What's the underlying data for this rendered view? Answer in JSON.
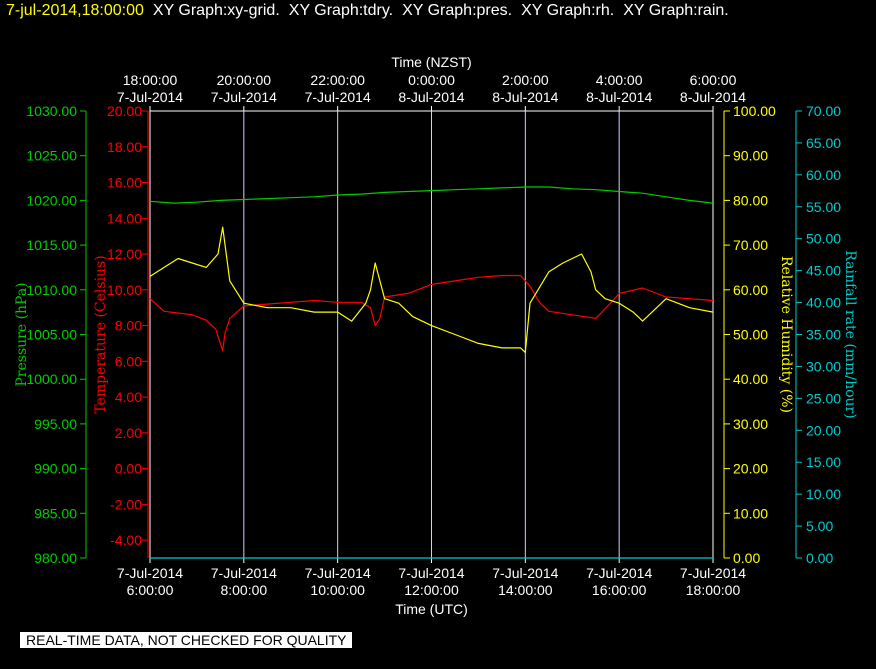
{
  "header": {
    "datetime": "7-jul-2014,18:00:00",
    "titles": [
      "XY Graph:xy-grid.",
      "XY Graph:tdry.",
      "XY Graph:pres.",
      "XY Graph:rh.",
      "XY Graph:rain."
    ]
  },
  "disclaimer": "REAL-TIME DATA, NOT CHECKED FOR QUALITY",
  "colors": {
    "background": "#000000",
    "pressure": "#00cc00",
    "temperature": "#ff0000",
    "humidity": "#ffff00",
    "rainfall": "#00cccc",
    "grid": "#c8d4ff",
    "frame": "#ffffff"
  },
  "chart_data": {
    "type": "line",
    "grid": true,
    "x_top": {
      "label": "Time (NZST)",
      "ticks": [
        [
          "18:00:00",
          "7-Jul-2014"
        ],
        [
          "20:00:00",
          "7-Jul-2014"
        ],
        [
          "22:00:00",
          "7-Jul-2014"
        ],
        [
          "0:00:00",
          "8-Jul-2014"
        ],
        [
          "2:00:00",
          "8-Jul-2014"
        ],
        [
          "4:00:00",
          "8-Jul-2014"
        ],
        [
          "6:00:00",
          "8-Jul-2014"
        ]
      ]
    },
    "x_bottom": {
      "label": "Time (UTC)",
      "ticks": [
        [
          "7-Jul-2014",
          "6:00:00"
        ],
        [
          "7-Jul-2014",
          "8:00:00"
        ],
        [
          "7-Jul-2014",
          "10:00:00"
        ],
        [
          "7-Jul-2014",
          "12:00:00"
        ],
        [
          "7-Jul-2014",
          "14:00:00"
        ],
        [
          "7-Jul-2014",
          "16:00:00"
        ],
        [
          "7-Jul-2014",
          "18:00:00"
        ]
      ],
      "range_hours_utc": [
        6,
        18
      ]
    },
    "axes": {
      "pressure": {
        "label": "Pressure (hPa)",
        "range": [
          980,
          1030
        ],
        "ticks": [
          "980.00",
          "985.00",
          "990.00",
          "995.00",
          "1000.00",
          "1005.00",
          "1010.00",
          "1015.00",
          "1020.00",
          "1025.00",
          "1030.00"
        ]
      },
      "temperature": {
        "label": "Temperature (Celsius)",
        "range": [
          -5,
          20
        ],
        "ticks": [
          "-4.00",
          "-2.00",
          "0.00",
          "2.00",
          "4.00",
          "6.00",
          "8.00",
          "10.00",
          "12.00",
          "14.00",
          "16.00",
          "18.00",
          "20.00"
        ]
      },
      "humidity": {
        "label": "Relative Humidity (%)",
        "range": [
          0,
          100
        ],
        "ticks": [
          "0.00",
          "10.00",
          "20.00",
          "30.00",
          "40.00",
          "50.00",
          "60.00",
          "70.00",
          "80.00",
          "90.00",
          "100.00"
        ]
      },
      "rainfall": {
        "label": "Rainfall rate (mm/hour)",
        "range": [
          0,
          70
        ],
        "ticks": [
          "0.00",
          "5.00",
          "10.00",
          "15.00",
          "20.00",
          "25.00",
          "30.00",
          "35.00",
          "40.00",
          "45.00",
          "50.00",
          "55.00",
          "60.00",
          "65.00",
          "70.00"
        ]
      }
    },
    "series": [
      {
        "name": "pres",
        "axis": "pressure",
        "x": [
          6.0,
          6.5,
          7.0,
          7.5,
          8.0,
          8.5,
          9.0,
          9.5,
          10.0,
          10.5,
          11.0,
          11.5,
          12.0,
          12.5,
          13.0,
          13.5,
          14.0,
          14.5,
          15.0,
          15.5,
          16.0,
          16.5,
          17.0,
          17.5,
          18.0
        ],
        "y": [
          1019.9,
          1019.7,
          1019.8,
          1020.0,
          1020.1,
          1020.2,
          1020.3,
          1020.4,
          1020.6,
          1020.7,
          1020.9,
          1021.0,
          1021.1,
          1021.2,
          1021.3,
          1021.4,
          1021.5,
          1021.5,
          1021.3,
          1021.2,
          1021.0,
          1020.8,
          1020.4,
          1020.0,
          1019.7
        ]
      },
      {
        "name": "tdry",
        "axis": "temperature",
        "x": [
          6.0,
          6.3,
          6.6,
          6.9,
          7.2,
          7.4,
          7.55,
          7.6,
          7.7,
          8.0,
          8.5,
          9.0,
          9.5,
          10.0,
          10.5,
          10.7,
          10.8,
          10.9,
          11.0,
          11.5,
          12.0,
          12.5,
          13.0,
          13.5,
          13.9,
          14.1,
          14.3,
          14.5,
          15.0,
          15.5,
          15.8,
          16.0,
          16.5,
          17.0,
          17.5,
          18.0
        ],
        "y": [
          9.5,
          8.8,
          8.7,
          8.6,
          8.3,
          7.8,
          6.6,
          7.6,
          8.4,
          9.1,
          9.2,
          9.3,
          9.4,
          9.3,
          9.3,
          9.0,
          8.0,
          8.4,
          9.6,
          9.8,
          10.3,
          10.5,
          10.7,
          10.8,
          10.8,
          10.2,
          9.3,
          8.8,
          8.6,
          8.4,
          9.2,
          9.8,
          10.1,
          9.6,
          9.5,
          9.4
        ]
      },
      {
        "name": "rh",
        "axis": "humidity",
        "x": [
          6.0,
          6.3,
          6.6,
          6.9,
          7.2,
          7.45,
          7.55,
          7.7,
          8.0,
          8.5,
          9.0,
          9.5,
          10.0,
          10.3,
          10.6,
          10.7,
          10.8,
          10.9,
          11.0,
          11.3,
          11.6,
          11.8,
          12.0,
          12.5,
          13.0,
          13.5,
          13.9,
          14.0,
          14.1,
          14.5,
          14.8,
          15.0,
          15.2,
          15.4,
          15.5,
          15.7,
          16.0,
          16.3,
          16.5,
          17.0,
          17.5,
          18.0
        ],
        "y": [
          63,
          65,
          67,
          66,
          65,
          68,
          74,
          62,
          57,
          56,
          56,
          55,
          55,
          53,
          57,
          60,
          66,
          62,
          58,
          57,
          54,
          53,
          52,
          50,
          48,
          47,
          47,
          46,
          57,
          64,
          66,
          67,
          68,
          64,
          60,
          58,
          57,
          55,
          53,
          58,
          56,
          55
        ]
      },
      {
        "name": "rain",
        "axis": "rainfall",
        "x": [
          6.0,
          18.0
        ],
        "y": [
          0.0,
          0.0
        ]
      }
    ]
  }
}
